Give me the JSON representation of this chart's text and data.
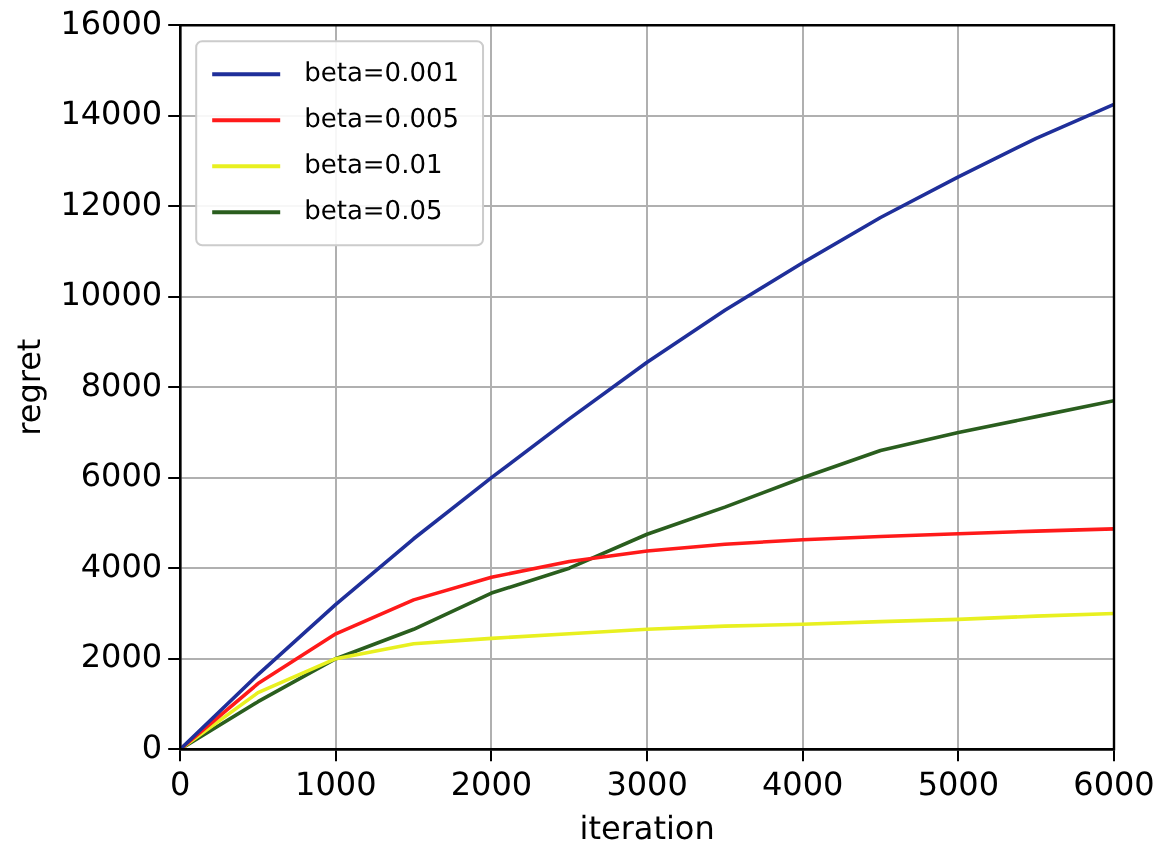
{
  "chart_data": {
    "type": "line",
    "xlabel": "iteration",
    "ylabel": "regret",
    "x": [
      0,
      500,
      1000,
      1500,
      2000,
      2500,
      3000,
      3500,
      4000,
      4500,
      5000,
      5500,
      6000
    ],
    "series": [
      {
        "name": "beta=0.001",
        "color": "#1f2f9a",
        "values": [
          0,
          1650,
          3200,
          4650,
          6000,
          7300,
          8550,
          9700,
          10750,
          11750,
          12650,
          13500,
          14250
        ]
      },
      {
        "name": "beta=0.005",
        "color": "#ff1a1a",
        "values": [
          0,
          1450,
          2550,
          3300,
          3800,
          4150,
          4380,
          4530,
          4630,
          4700,
          4760,
          4820,
          4870
        ]
      },
      {
        "name": "beta=0.01",
        "color": "#e8f020",
        "values": [
          0,
          1250,
          2000,
          2330,
          2450,
          2550,
          2650,
          2720,
          2760,
          2820,
          2870,
          2940,
          3000
        ]
      },
      {
        "name": "beta=0.05",
        "color": "#2a5e1e",
        "values": [
          0,
          1050,
          2000,
          2650,
          3450,
          4000,
          4750,
          5350,
          6000,
          6600,
          7000,
          7350,
          7700
        ]
      }
    ],
    "xlim": [
      0,
      6000
    ],
    "xticks": [
      0,
      1000,
      2000,
      3000,
      4000,
      5000,
      6000
    ],
    "ylim": [
      0,
      16000
    ],
    "yticks": [
      0,
      2000,
      4000,
      6000,
      8000,
      10000,
      12000,
      14000,
      16000
    ],
    "grid": true,
    "legend": "top left",
    "marker": "none",
    "line_style": "solid"
  }
}
